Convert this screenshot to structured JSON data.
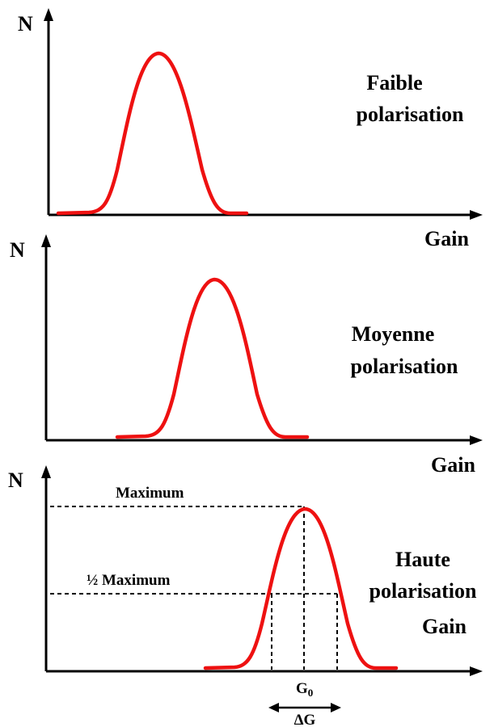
{
  "panels": [
    {
      "y_label": "N",
      "x_label": "Gain",
      "title_line1": "Faible",
      "title_line2": "polarisation"
    },
    {
      "y_label": "N",
      "x_label": "Gain",
      "title_line1": "Moyenne",
      "title_line2": "polarisation"
    },
    {
      "y_label": "N",
      "x_label": "Gain",
      "title_line1": "Haute",
      "title_line2": "polarisation"
    }
  ],
  "annotations": {
    "maximum": "Maximum",
    "half_maximum": "½ Maximum",
    "g0_main": "G",
    "g0_sub": "0",
    "delta_g": "ΔG"
  },
  "colors": {
    "curve": "#ee1111",
    "axes": "#000000"
  }
}
